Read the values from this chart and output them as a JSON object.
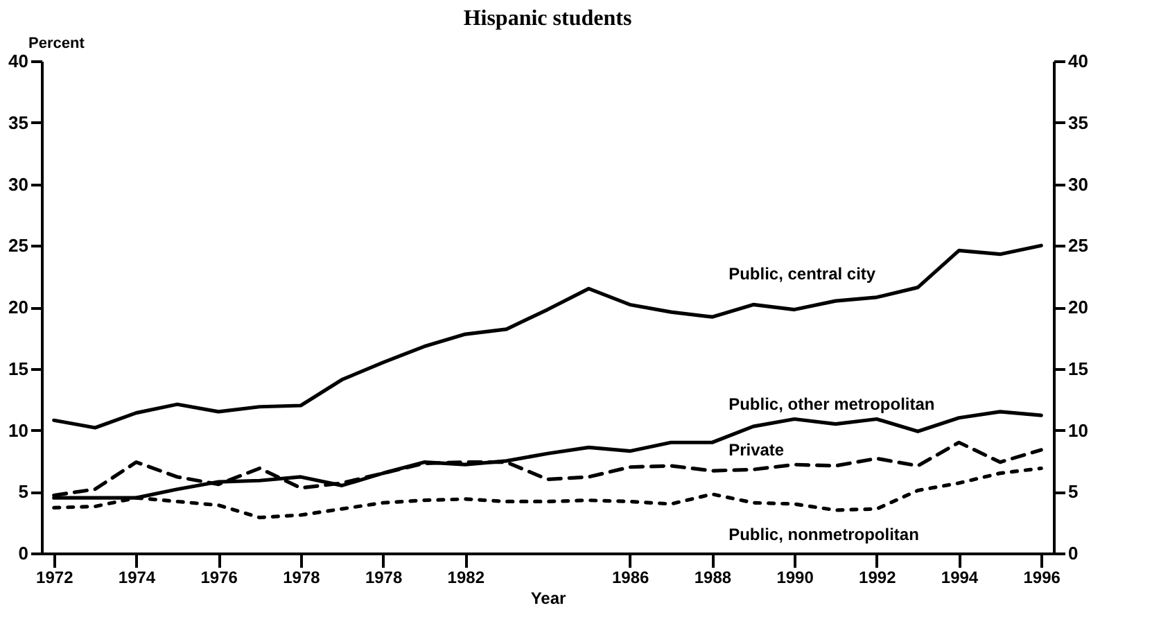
{
  "chart_data": {
    "type": "line",
    "title": "Hispanic students",
    "xlabel": "Year",
    "ylabel": "Percent",
    "categories": [
      "1972",
      null,
      "1974",
      null,
      "1976",
      null,
      "1978",
      null,
      "1978",
      null,
      "1982",
      null,
      null,
      null,
      "1986",
      null,
      "1988",
      null,
      "1990",
      null,
      "1992",
      null,
      "1994",
      null,
      "1996"
    ],
    "ylim": [
      0,
      40
    ],
    "yticks": [
      0,
      5,
      10,
      15,
      20,
      25,
      30,
      35,
      40
    ],
    "y2lim": [
      0,
      40
    ],
    "y2ticks": [
      0,
      5,
      10,
      15,
      20,
      25,
      30,
      35,
      40
    ],
    "series": [
      {
        "name": "Public, central city",
        "color": "#000000",
        "line_style": "solid",
        "values": [
          10.8,
          10.2,
          11.4,
          12.1,
          11.5,
          11.9,
          12.0,
          14.1,
          15.5,
          16.8,
          17.8,
          18.2,
          19.8,
          21.5,
          20.2,
          19.6,
          19.2,
          20.2,
          19.8,
          20.5,
          20.8,
          21.6,
          24.6,
          24.3,
          25.0
        ]
      },
      {
        "name": "Public, other metropolitan",
        "color": "#000000",
        "line_style": "solid",
        "values": [
          4.5,
          4.5,
          4.5,
          5.2,
          5.8,
          5.9,
          6.2,
          5.5,
          6.5,
          7.4,
          7.2,
          7.5,
          8.1,
          8.6,
          8.3,
          9.0,
          9.0,
          10.3,
          10.9,
          10.5,
          10.9,
          9.9,
          11.0,
          11.5,
          11.2
        ]
      },
      {
        "name": "Private",
        "color": "#000000",
        "line_style": "dashed",
        "values": [
          4.7,
          5.2,
          7.4,
          6.2,
          5.6,
          6.9,
          5.3,
          5.7,
          6.5,
          7.3,
          7.4,
          7.4,
          6.0,
          6.2,
          7.0,
          7.1,
          6.7,
          6.8,
          7.2,
          7.1,
          7.7,
          7.1,
          9.0,
          7.4,
          8.4
        ]
      },
      {
        "name": "Public, nonmetropolitan",
        "color": "#000000",
        "line_style": "dotted",
        "values": [
          3.7,
          3.8,
          4.5,
          4.2,
          3.9,
          2.9,
          3.1,
          3.6,
          4.1,
          4.3,
          4.4,
          4.2,
          4.2,
          4.3,
          4.2,
          4.0,
          4.8,
          4.1,
          4.0,
          3.5,
          3.6,
          5.1,
          5.7,
          6.5,
          6.9
        ]
      }
    ]
  }
}
